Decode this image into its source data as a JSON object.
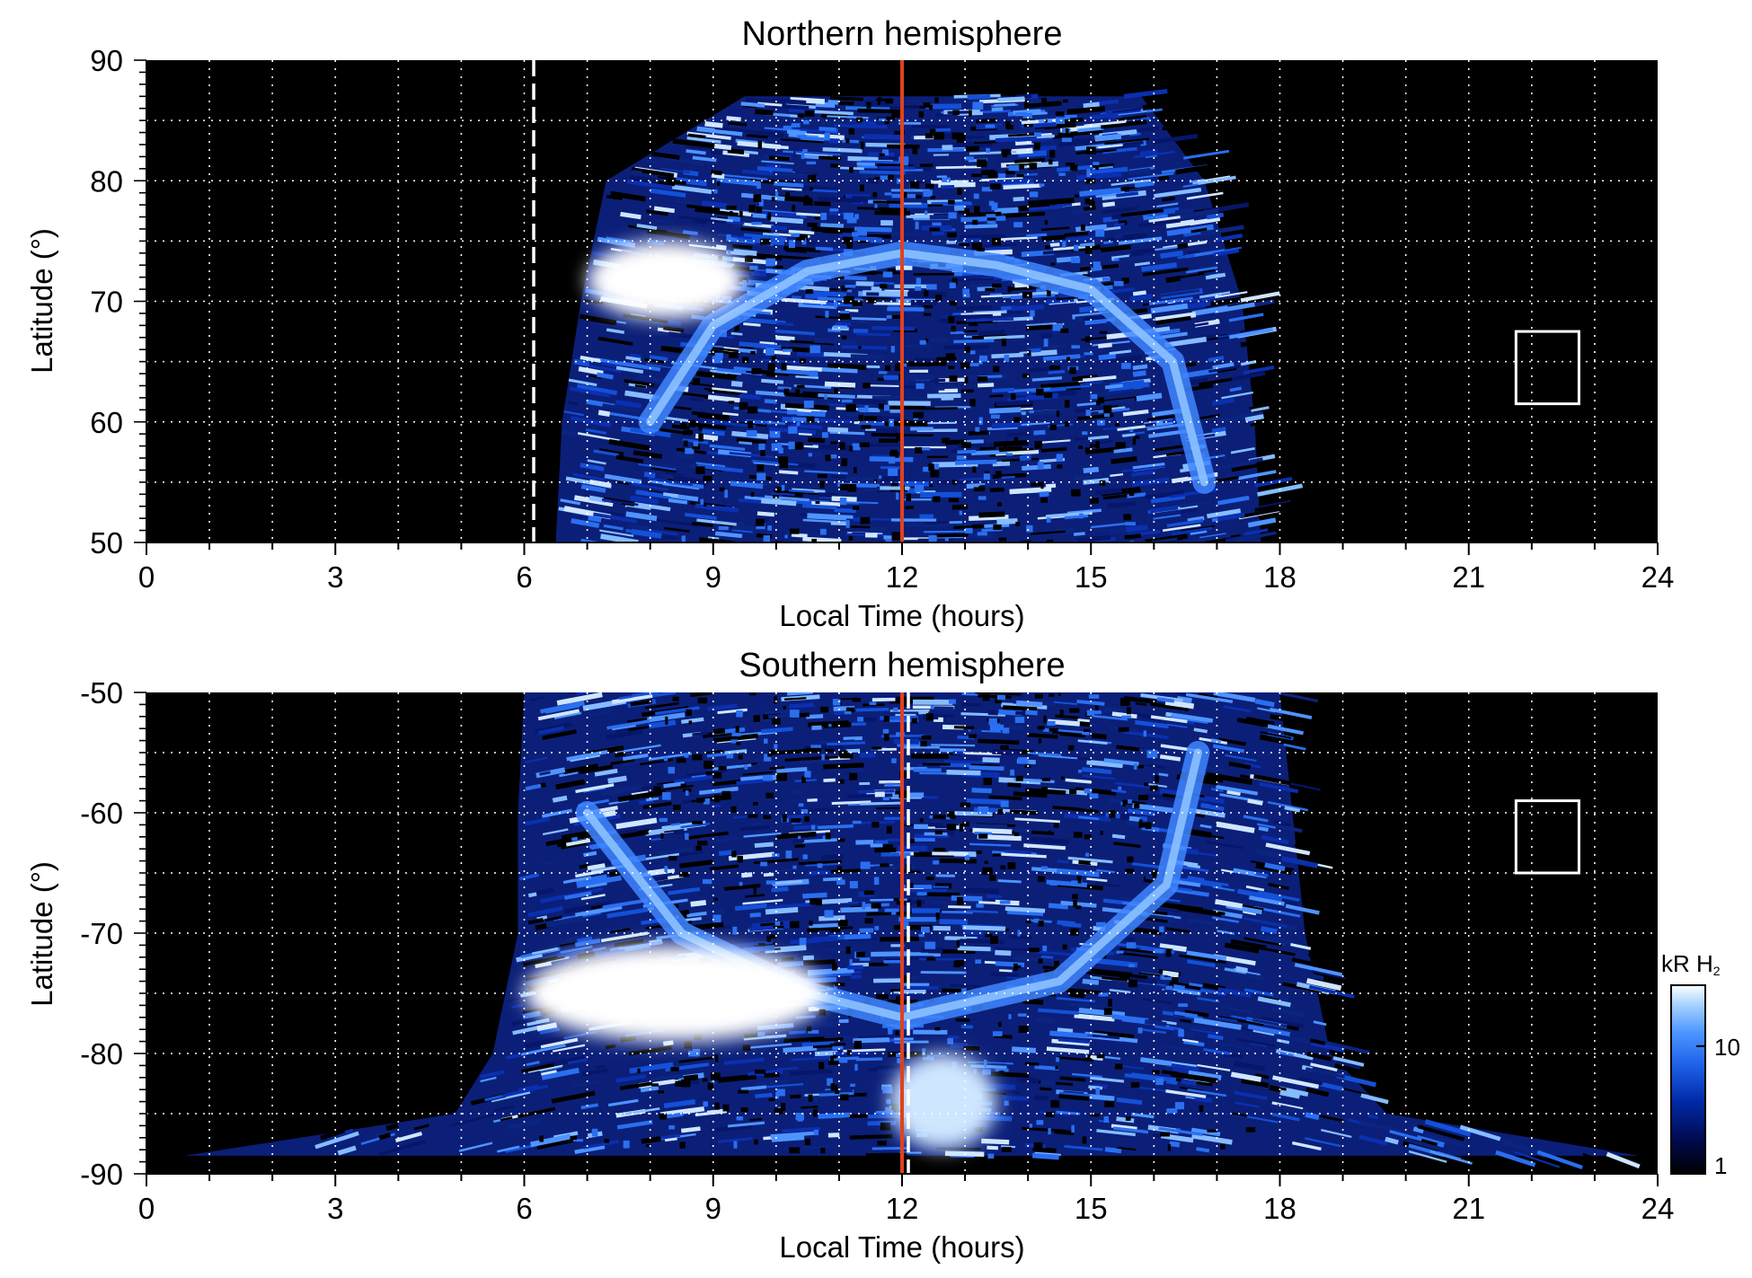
{
  "chart_data": [
    {
      "type": "heatmap",
      "title": "Northern hemisphere",
      "xlabel": "Local Time (hours)",
      "ylabel": "Latitude (°)",
      "xlim": [
        0,
        24
      ],
      "ylim": [
        50,
        90
      ],
      "xticks": [
        "0",
        "3",
        "6",
        "9",
        "12",
        "15",
        "18",
        "21",
        "24"
      ],
      "yticks": [
        "50",
        "60",
        "70",
        "80",
        "90"
      ],
      "grid": true,
      "noon_line_local_time": 12,
      "dashed_line_local_time": 6.15,
      "box": {
        "local_time": [
          21.75,
          22.75
        ],
        "latitude": [
          61.5,
          67.5
        ]
      },
      "coverage": [
        {
          "latitude": 87,
          "from": 9.5,
          "to": 15.8
        },
        {
          "latitude": 80,
          "from": 7.3,
          "to": 16.8
        },
        {
          "latitude": 70,
          "from": 6.9,
          "to": 17.4
        },
        {
          "latitude": 60,
          "from": 6.6,
          "to": 17.6
        },
        {
          "latitude": 50,
          "from": 6.5,
          "to": 17.7
        }
      ],
      "bright_regions": [
        {
          "local_time": [
            7.0,
            9.5
          ],
          "latitude": [
            68.5,
            75
          ],
          "level": "very bright"
        }
      ],
      "auroral_oval": [
        {
          "local_time": 8.0,
          "latitude": 60
        },
        {
          "local_time": 9.0,
          "latitude": 68
        },
        {
          "local_time": 10.5,
          "latitude": 72.5
        },
        {
          "local_time": 12.0,
          "latitude": 74
        },
        {
          "local_time": 13.5,
          "latitude": 73
        },
        {
          "local_time": 15.0,
          "latitude": 71
        },
        {
          "local_time": 16.3,
          "latitude": 65
        },
        {
          "local_time": 16.8,
          "latitude": 55
        }
      ]
    },
    {
      "type": "heatmap",
      "title": "Southern hemisphere",
      "xlabel": "Local Time (hours)",
      "ylabel": "Latitude (°)",
      "xlim": [
        0,
        24
      ],
      "ylim": [
        -90,
        -50
      ],
      "xticks": [
        "0",
        "3",
        "6",
        "9",
        "12",
        "15",
        "18",
        "21",
        "24"
      ],
      "yticks": [
        "-50",
        "-60",
        "-70",
        "-80",
        "-90"
      ],
      "grid": true,
      "noon_line_local_time": 12,
      "dashed_line_local_time": 12.1,
      "box": {
        "local_time": [
          21.75,
          22.75
        ],
        "latitude": [
          -65,
          -59
        ]
      },
      "coverage": [
        {
          "latitude": -50,
          "from": 6.0,
          "to": 18.0
        },
        {
          "latitude": -60,
          "from": 5.9,
          "to": 18.2
        },
        {
          "latitude": -70,
          "from": 5.9,
          "to": 18.4
        },
        {
          "latitude": -80,
          "from": 5.5,
          "to": 18.8
        },
        {
          "latitude": -85,
          "from": 4.9,
          "to": 19.7
        },
        {
          "latitude": -88.5,
          "from": 0.6,
          "to": 23.7
        }
      ],
      "bright_regions": [
        {
          "local_time": [
            6.0,
            10.8
          ],
          "latitude": [
            -79,
            -71
          ],
          "level": "very bright"
        },
        {
          "local_time": [
            11.8,
            13.5
          ],
          "latitude": [
            -88,
            -80
          ],
          "level": "bright"
        }
      ],
      "auroral_oval": [
        {
          "local_time": 7.0,
          "latitude": -60
        },
        {
          "local_time": 8.5,
          "latitude": -70
        },
        {
          "local_time": 10.5,
          "latitude": -75
        },
        {
          "local_time": 12.0,
          "latitude": -77
        },
        {
          "local_time": 14.5,
          "latitude": -74
        },
        {
          "local_time": 16.2,
          "latitude": -66
        },
        {
          "local_time": 16.7,
          "latitude": -55
        }
      ]
    }
  ],
  "colorbar": {
    "label_main": "kR H",
    "label_sub": "2",
    "scale": "log",
    "range": [
      1,
      30
    ],
    "ticks": [
      "10",
      "1"
    ],
    "tick_values": [
      10,
      1
    ],
    "colors": [
      "#000000",
      "#000a4a",
      "#0028a6",
      "#1f62ea",
      "#4d96ff",
      "#a9d4ff",
      "#ffffff"
    ]
  }
}
